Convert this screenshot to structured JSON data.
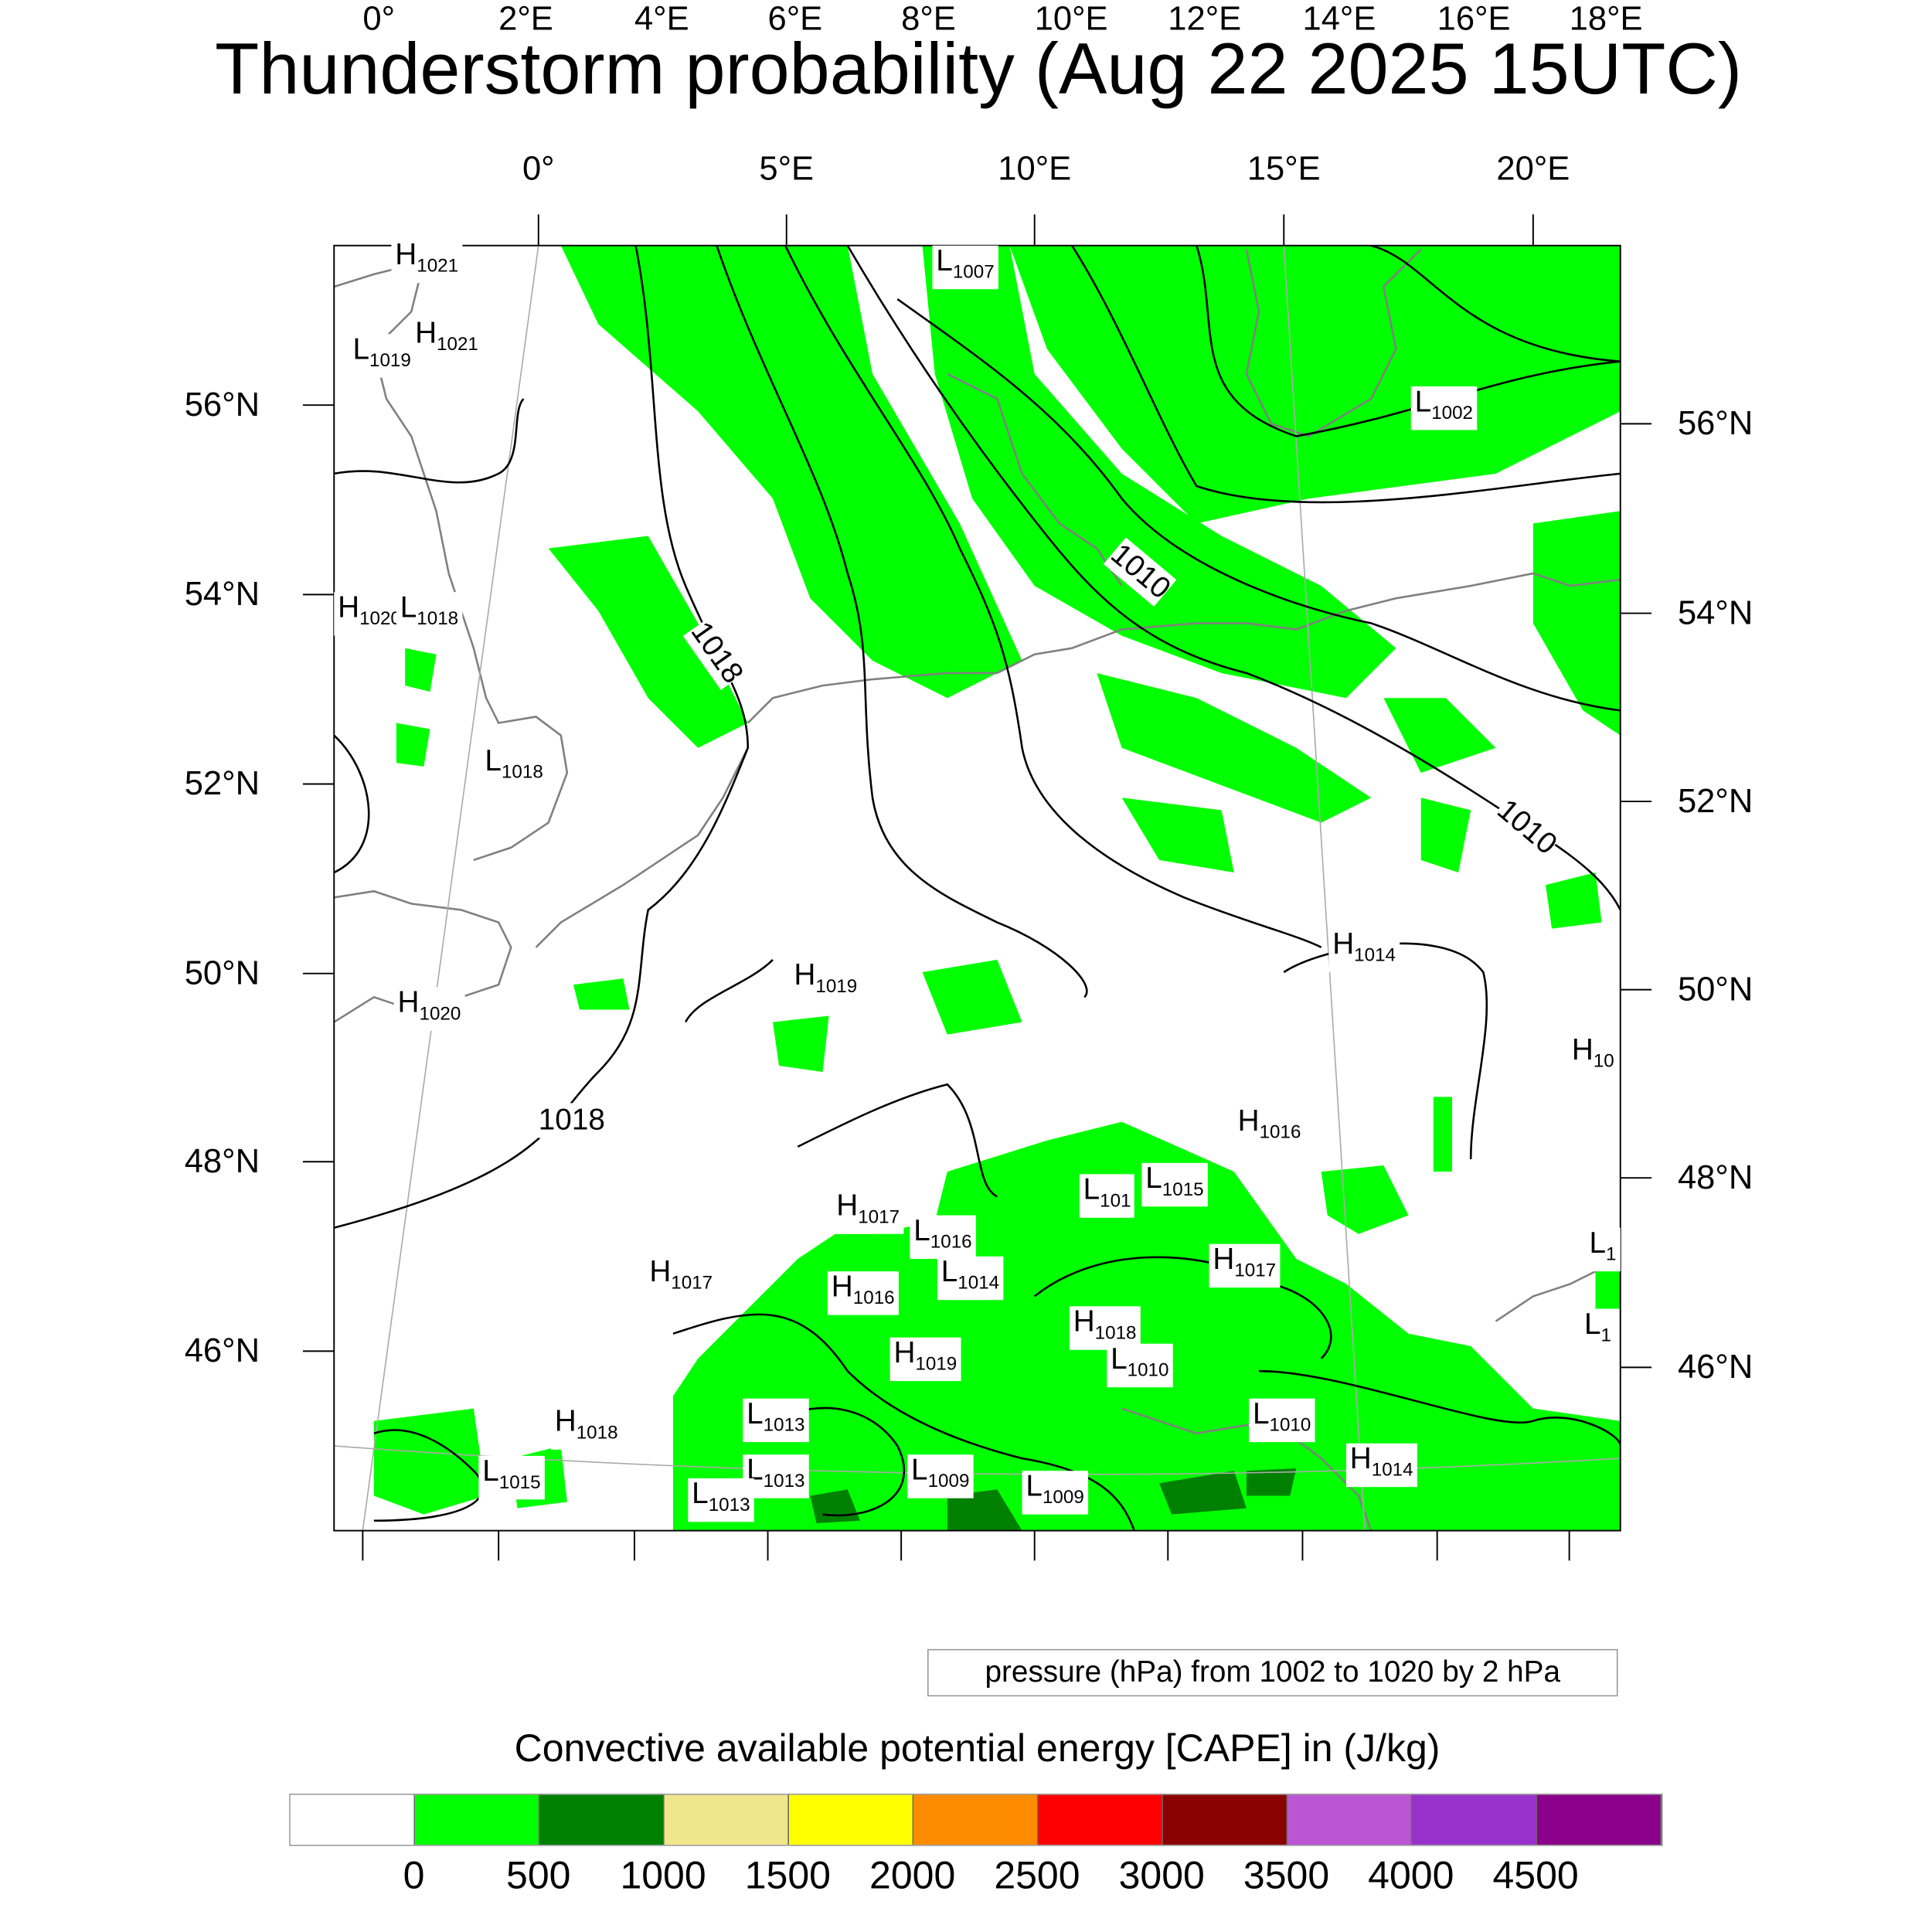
{
  "title": "Thunderstorm probability (Aug 22 2025 15UTC)",
  "axes": {
    "top": [
      "0°",
      "5°E",
      "10°E",
      "15°E",
      "20°E"
    ],
    "bottom": [
      "0°",
      "2°E",
      "4°E",
      "6°E",
      "8°E",
      "10°E",
      "12°E",
      "14°E",
      "16°E",
      "18°E"
    ],
    "left": [
      "56°N",
      "54°N",
      "52°N",
      "50°N",
      "48°N",
      "46°N"
    ],
    "right": [
      "56°N",
      "54°N",
      "52°N",
      "50°N",
      "48°N",
      "46°N"
    ]
  },
  "pressure_systems": [
    {
      "type": "H",
      "value": "1021"
    },
    {
      "type": "H",
      "value": "1021"
    },
    {
      "type": "L",
      "value": "1019"
    },
    {
      "type": "L",
      "value": "1007"
    },
    {
      "type": "L",
      "value": "1002"
    },
    {
      "type": "H",
      "value": "1020"
    },
    {
      "type": "L",
      "value": "1018"
    },
    {
      "type": "L",
      "value": "1018"
    },
    {
      "type": "H",
      "value": "1014"
    },
    {
      "type": "H",
      "value": "1019"
    },
    {
      "type": "H",
      "value": "1020"
    },
    {
      "type": "H",
      "value": "10"
    },
    {
      "type": "H",
      "value": "1016"
    },
    {
      "type": "L",
      "value": "1015"
    },
    {
      "type": "L",
      "value": "101"
    },
    {
      "type": "H",
      "value": "1017"
    },
    {
      "type": "L",
      "value": "1016"
    },
    {
      "type": "L",
      "value": "1"
    },
    {
      "type": "H",
      "value": "1017"
    },
    {
      "type": "H",
      "value": "1016"
    },
    {
      "type": "L",
      "value": "1014"
    },
    {
      "type": "H",
      "value": "1017"
    },
    {
      "type": "L",
      "value": "1"
    },
    {
      "type": "H",
      "value": "1018"
    },
    {
      "type": "H",
      "value": "1019"
    },
    {
      "type": "L",
      "value": "1010"
    },
    {
      "type": "L",
      "value": "1013"
    },
    {
      "type": "H",
      "value": "1018"
    },
    {
      "type": "L",
      "value": "1010"
    },
    {
      "type": "L",
      "value": "1013"
    },
    {
      "type": "L",
      "value": "1009"
    },
    {
      "type": "L",
      "value": "1009"
    },
    {
      "type": "H",
      "value": "1014"
    },
    {
      "type": "L",
      "value": "1015"
    },
    {
      "type": "L",
      "value": "1013"
    }
  ],
  "contour_labels": [
    "1010",
    "1018",
    "1010",
    "1018"
  ],
  "pressure_info": "pressure (hPa) from 1002 to 1020 by 2 hPa",
  "colorbar": {
    "title": "Convective available potential energy [CAPE] in (J/kg)",
    "colors": [
      "#ffffff",
      "#00ff00",
      "#008000",
      "#f0e68c",
      "#ffff00",
      "#ff8c00",
      "#ff0000",
      "#8b0000",
      "#ba55d3",
      "#9932cc",
      "#8b008b"
    ],
    "labels": [
      "0",
      "500",
      "1000",
      "1500",
      "2000",
      "2500",
      "3000",
      "3500",
      "4000",
      "4500"
    ]
  }
}
